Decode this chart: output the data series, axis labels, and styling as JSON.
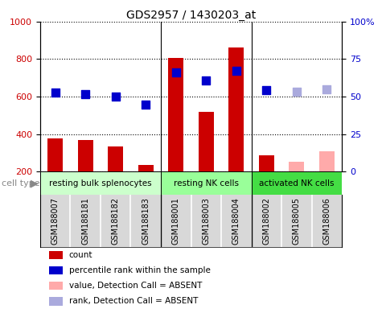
{
  "title": "GDS2957 / 1430203_at",
  "samples": [
    "GSM188007",
    "GSM188181",
    "GSM188182",
    "GSM188183",
    "GSM188001",
    "GSM188003",
    "GSM188004",
    "GSM188002",
    "GSM188005",
    "GSM188006"
  ],
  "groups": [
    {
      "label": "resting bulk splenocytes",
      "start": 0,
      "end": 4,
      "color": "#ccffcc"
    },
    {
      "label": "resting NK cells",
      "start": 4,
      "end": 7,
      "color": "#99ff99"
    },
    {
      "label": "activated NK cells",
      "start": 7,
      "end": 10,
      "color": "#44dd44"
    }
  ],
  "bar_values": [
    375,
    368,
    335,
    235,
    805,
    520,
    860,
    285,
    null,
    null
  ],
  "absent_bar_values": [
    null,
    null,
    null,
    null,
    null,
    null,
    null,
    null,
    250,
    310
  ],
  "dot_values": [
    620,
    612,
    601,
    557,
    730,
    688,
    738,
    635,
    null,
    null
  ],
  "dot_absent_values": [
    null,
    null,
    null,
    null,
    null,
    null,
    null,
    null,
    625,
    638
  ],
  "ylim_left": [
    200,
    1000
  ],
  "ylim_right": [
    0,
    100
  ],
  "left_ticks": [
    200,
    400,
    600,
    800,
    1000
  ],
  "right_ticks": [
    0,
    25,
    50,
    75,
    100
  ],
  "bar_width": 0.5,
  "dot_size": 55,
  "count_color": "#cc0000",
  "percentile_color": "#0000cc",
  "absent_bar_color": "#ffaaaa",
  "absent_dot_color": "#aaaadd",
  "cell_type_label": "cell type",
  "legend_items": [
    {
      "label": "count",
      "color": "#cc0000"
    },
    {
      "label": "percentile rank within the sample",
      "color": "#0000cc"
    },
    {
      "label": "value, Detection Call = ABSENT",
      "color": "#ffaaaa"
    },
    {
      "label": "rank, Detection Call = ABSENT",
      "color": "#aaaadd"
    }
  ]
}
